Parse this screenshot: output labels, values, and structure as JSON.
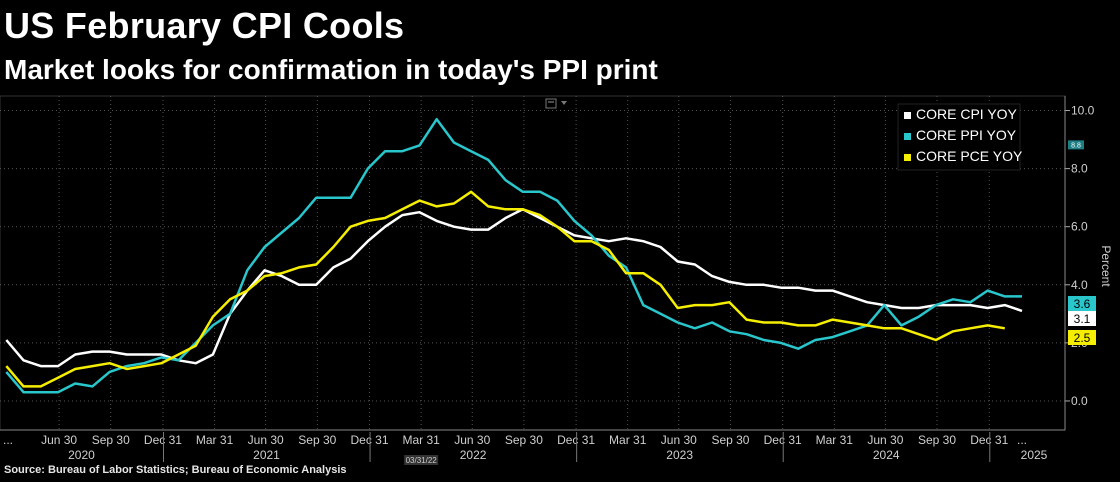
{
  "title": "US February CPI Cools",
  "subtitle": "Market looks for confirmation in today's PPI print",
  "source": "Source: Bureau of Labor Statistics; Bureau of Economic Analysis",
  "chart_data": {
    "type": "line",
    "ylabel": "Percent",
    "ylim": [
      -1.0,
      10.5
    ],
    "yticks": [
      0.0,
      2.0,
      4.0,
      6.0,
      8.0,
      10.0
    ],
    "ytick_labels": [
      "0.0",
      "2.0",
      "4.0",
      "6.0",
      "8.0",
      "10.0"
    ],
    "xrange": [
      "2020-03-31",
      "2025-02-28"
    ],
    "xticks": [
      {
        "label": "...",
        "date": "2020-03-31"
      },
      {
        "label": "Jun 30",
        "date": "2020-06-30"
      },
      {
        "label": "Sep 30",
        "date": "2020-09-30"
      },
      {
        "label": "Dec 31",
        "date": "2020-12-31"
      },
      {
        "label": "Mar 31",
        "date": "2021-03-31"
      },
      {
        "label": "Jun 30",
        "date": "2021-06-30"
      },
      {
        "label": "Sep 30",
        "date": "2021-09-30"
      },
      {
        "label": "Dec 31",
        "date": "2021-12-31"
      },
      {
        "label": "Mar 31",
        "date": "2022-03-31"
      },
      {
        "label": "Jun 30",
        "date": "2022-06-30"
      },
      {
        "label": "Sep 30",
        "date": "2022-09-30"
      },
      {
        "label": "Dec 31",
        "date": "2022-12-31"
      },
      {
        "label": "Mar 31",
        "date": "2023-03-31"
      },
      {
        "label": "Jun 30",
        "date": "2023-06-30"
      },
      {
        "label": "Sep 30",
        "date": "2023-09-30"
      },
      {
        "label": "Dec 31",
        "date": "2023-12-31"
      },
      {
        "label": "Mar 31",
        "date": "2024-03-31"
      },
      {
        "label": "Jun 30",
        "date": "2024-06-30"
      },
      {
        "label": "Sep 30",
        "date": "2024-09-30"
      },
      {
        "label": "Dec 31",
        "date": "2024-12-31"
      },
      {
        "label": "...",
        "date": "2025-02-28"
      }
    ],
    "years": [
      "2020",
      "2021",
      "2022",
      "2023",
      "2024",
      "2025"
    ],
    "grid": true,
    "legend_position": "top-right",
    "series": [
      {
        "name": "CORE CPI YOY",
        "color": "#ffffff",
        "last_label": "3.1",
        "x": [
          "2020-03",
          "2020-04",
          "2020-05",
          "2020-06",
          "2020-07",
          "2020-08",
          "2020-09",
          "2020-10",
          "2020-11",
          "2020-12",
          "2021-01",
          "2021-02",
          "2021-03",
          "2021-04",
          "2021-05",
          "2021-06",
          "2021-07",
          "2021-08",
          "2021-09",
          "2021-10",
          "2021-11",
          "2021-12",
          "2022-01",
          "2022-02",
          "2022-03",
          "2022-04",
          "2022-05",
          "2022-06",
          "2022-07",
          "2022-08",
          "2022-09",
          "2022-10",
          "2022-11",
          "2022-12",
          "2023-01",
          "2023-02",
          "2023-03",
          "2023-04",
          "2023-05",
          "2023-06",
          "2023-07",
          "2023-08",
          "2023-09",
          "2023-10",
          "2023-11",
          "2023-12",
          "2024-01",
          "2024-02",
          "2024-03",
          "2024-04",
          "2024-05",
          "2024-06",
          "2024-07",
          "2024-08",
          "2024-09",
          "2024-10",
          "2024-11",
          "2024-12",
          "2025-01",
          "2025-02"
        ],
        "values": [
          2.1,
          1.4,
          1.2,
          1.2,
          1.6,
          1.7,
          1.7,
          1.6,
          1.6,
          1.6,
          1.4,
          1.3,
          1.6,
          3.0,
          3.8,
          4.5,
          4.3,
          4.0,
          4.0,
          4.6,
          4.9,
          5.5,
          6.0,
          6.4,
          6.5,
          6.2,
          6.0,
          5.9,
          5.9,
          6.3,
          6.6,
          6.3,
          6.0,
          5.7,
          5.6,
          5.5,
          5.6,
          5.5,
          5.3,
          4.8,
          4.7,
          4.3,
          4.1,
          4.0,
          4.0,
          3.9,
          3.9,
          3.8,
          3.8,
          3.6,
          3.4,
          3.3,
          3.2,
          3.2,
          3.3,
          3.3,
          3.3,
          3.2,
          3.3,
          3.1
        ]
      },
      {
        "name": "CORE PPI YOY",
        "color": "#29c6cc",
        "last_label": "3.6",
        "x": [
          "2020-03",
          "2020-04",
          "2020-05",
          "2020-06",
          "2020-07",
          "2020-08",
          "2020-09",
          "2020-10",
          "2020-11",
          "2020-12",
          "2021-01",
          "2021-02",
          "2021-03",
          "2021-04",
          "2021-05",
          "2021-06",
          "2021-07",
          "2021-08",
          "2021-09",
          "2021-10",
          "2021-11",
          "2021-12",
          "2022-01",
          "2022-02",
          "2022-03",
          "2022-04",
          "2022-05",
          "2022-06",
          "2022-07",
          "2022-08",
          "2022-09",
          "2022-10",
          "2022-11",
          "2022-12",
          "2023-01",
          "2023-02",
          "2023-03",
          "2023-04",
          "2023-05",
          "2023-06",
          "2023-07",
          "2023-08",
          "2023-09",
          "2023-10",
          "2023-11",
          "2023-12",
          "2024-01",
          "2024-02",
          "2024-03",
          "2024-04",
          "2024-05",
          "2024-06",
          "2024-07",
          "2024-08",
          "2024-09",
          "2024-10",
          "2024-11",
          "2024-12",
          "2025-01",
          "2025-02"
        ],
        "values": [
          1.0,
          0.3,
          0.3,
          0.3,
          0.6,
          0.5,
          1.0,
          1.2,
          1.3,
          1.5,
          1.4,
          2.0,
          2.6,
          3.0,
          4.5,
          5.3,
          5.8,
          6.3,
          7.0,
          7.0,
          7.0,
          8.0,
          8.6,
          8.6,
          8.8,
          9.7,
          8.9,
          8.6,
          8.3,
          7.6,
          7.2,
          7.2,
          6.9,
          6.2,
          5.7,
          5.0,
          4.6,
          3.3,
          3.0,
          2.7,
          2.5,
          2.7,
          2.4,
          2.3,
          2.1,
          2.0,
          1.8,
          2.1,
          2.2,
          2.4,
          2.6,
          3.3,
          2.6,
          2.9,
          3.3,
          3.5,
          3.4,
          3.8,
          3.6,
          3.6
        ]
      },
      {
        "name": "CORE PCE YOY",
        "color": "#f5ee00",
        "last_label": "2.5",
        "x": [
          "2020-03",
          "2020-04",
          "2020-05",
          "2020-06",
          "2020-07",
          "2020-08",
          "2020-09",
          "2020-10",
          "2020-11",
          "2020-12",
          "2021-01",
          "2021-02",
          "2021-03",
          "2021-04",
          "2021-05",
          "2021-06",
          "2021-07",
          "2021-08",
          "2021-09",
          "2021-10",
          "2021-11",
          "2021-12",
          "2022-01",
          "2022-02",
          "2022-03",
          "2022-04",
          "2022-05",
          "2022-06",
          "2022-07",
          "2022-08",
          "2022-09",
          "2022-10",
          "2022-11",
          "2022-12",
          "2023-01",
          "2023-02",
          "2023-03",
          "2023-04",
          "2023-05",
          "2023-06",
          "2023-07",
          "2023-08",
          "2023-09",
          "2023-10",
          "2023-11",
          "2023-12",
          "2024-01",
          "2024-02",
          "2024-03",
          "2024-04",
          "2024-05",
          "2024-06",
          "2024-07",
          "2024-08",
          "2024-09",
          "2024-10",
          "2024-11",
          "2024-12",
          "2025-01"
        ],
        "values": [
          1.2,
          0.5,
          0.5,
          0.8,
          1.1,
          1.2,
          1.3,
          1.1,
          1.2,
          1.3,
          1.6,
          1.9,
          2.9,
          3.5,
          3.8,
          4.3,
          4.4,
          4.6,
          4.7,
          5.3,
          6.0,
          6.2,
          6.3,
          6.6,
          6.9,
          6.7,
          6.8,
          7.2,
          6.7,
          6.6,
          6.6,
          6.4,
          6.0,
          5.5,
          5.5,
          5.2,
          4.4,
          4.4,
          4.0,
          3.2,
          3.3,
          3.3,
          3.4,
          2.8,
          2.7,
          2.7,
          2.6,
          2.6,
          2.8,
          2.7,
          2.6,
          2.5,
          2.5,
          2.3,
          2.1,
          2.4,
          2.5,
          2.6,
          2.5
        ]
      }
    ]
  },
  "chart_ui": {
    "marker_badge": "03/31/22",
    "side_marker": "8.8"
  }
}
